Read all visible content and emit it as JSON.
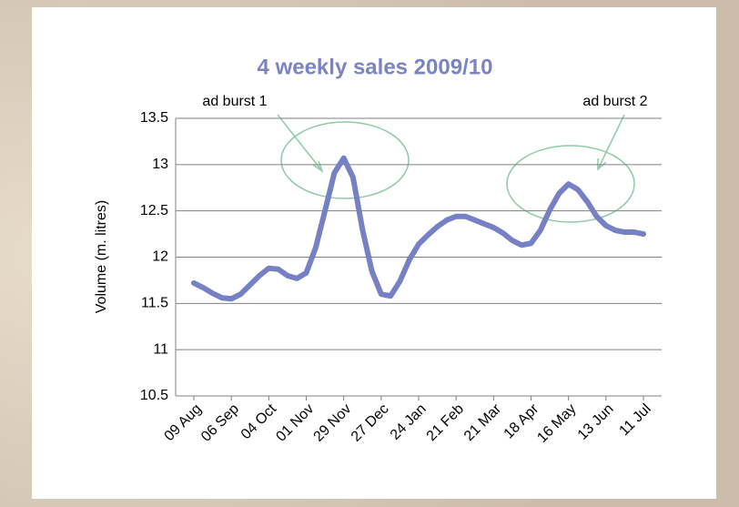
{
  "chart_data": {
    "type": "line",
    "title": "4 weekly sales 2009/10",
    "y_label": "Volume (m. litres)",
    "annotations": [
      "ad burst 1",
      "ad burst 2"
    ],
    "categories": [
      "09 Aug",
      null,
      null,
      null,
      "06 Sep",
      null,
      null,
      null,
      "04 Oct",
      null,
      null,
      null,
      "01 Nov",
      null,
      null,
      null,
      "29 Nov",
      null,
      null,
      null,
      "27 Dec",
      null,
      null,
      null,
      "24 Jan",
      null,
      null,
      null,
      "21 Feb",
      null,
      null,
      null,
      "21 Mar",
      null,
      null,
      null,
      "18 Apr",
      null,
      null,
      null,
      "16 May",
      null,
      null,
      null,
      "13 Jun",
      null,
      null,
      null,
      "11 Jul"
    ],
    "values": [
      11.72,
      11.67,
      11.61,
      11.56,
      11.55,
      11.6,
      11.7,
      11.8,
      11.88,
      11.87,
      11.8,
      11.77,
      11.83,
      12.1,
      12.5,
      12.91,
      13.07,
      12.86,
      12.3,
      11.85,
      11.6,
      11.58,
      11.74,
      11.97,
      12.14,
      12.24,
      12.33,
      12.4,
      12.44,
      12.44,
      12.4,
      12.36,
      12.32,
      12.26,
      12.18,
      12.13,
      12.15,
      12.29,
      12.51,
      12.69,
      12.79,
      12.73,
      12.6,
      12.44,
      12.34,
      12.29,
      12.27,
      12.27,
      12.25
    ],
    "color": "#7680c4",
    "ylim": [
      10.5,
      13.5
    ],
    "yticks": [
      10.5,
      11,
      11.5,
      12,
      12.5,
      13,
      13.5
    ],
    "grid": true
  }
}
